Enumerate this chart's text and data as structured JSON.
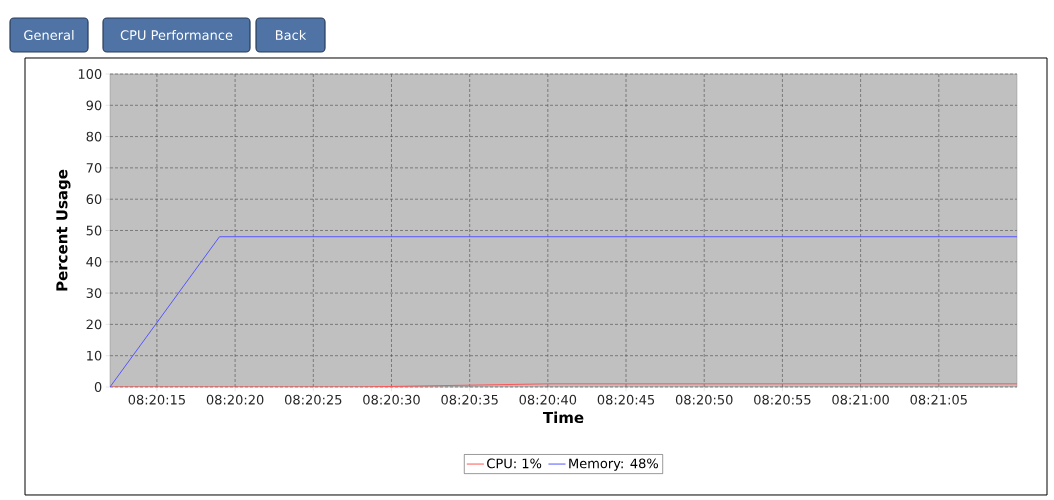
{
  "chart_data": {
    "type": "line",
    "xlabel": "Time",
    "ylabel": "Percent Usage",
    "annotations": [
      "General",
      "CPU Performance",
      "Back"
    ],
    "xlim": [
      8.336667,
      8.352778
    ],
    "ylim": [
      0,
      100
    ],
    "xticks": [
      {
        "value": 8.3375,
        "label": "08:20:15"
      },
      {
        "value": 8.338889,
        "label": "08:20:20"
      },
      {
        "value": 8.340278,
        "label": "08:20:25"
      },
      {
        "value": 8.341667,
        "label": "08:20:30"
      },
      {
        "value": 8.343056,
        "label": "08:20:35"
      },
      {
        "value": 8.344444,
        "label": "08:20:40"
      },
      {
        "value": 8.345833,
        "label": "08:20:45"
      },
      {
        "value": 8.347222,
        "label": "08:20:50"
      },
      {
        "value": 8.348611,
        "label": "08:20:55"
      },
      {
        "value": 8.35,
        "label": "08:21:00"
      },
      {
        "value": 8.351389,
        "label": "08:21:05"
      }
    ],
    "yticks": [
      0,
      10,
      20,
      30,
      40,
      50,
      60,
      70,
      80,
      90,
      100
    ],
    "series": [
      {
        "name": "CPU: 1%",
        "color": "#ff5555",
        "x": [
          8.336667,
          8.341111,
          8.344444,
          8.352778
        ],
        "values": [
          0,
          0,
          1,
          1
        ]
      },
      {
        "name": "Memory: 48%",
        "color": "#5555ff",
        "x": [
          8.336667,
          8.338611,
          8.352778
        ],
        "values": [
          0,
          48,
          48
        ]
      }
    ],
    "grid": true,
    "legend": "bottom",
    "marker": "none",
    "line_style": "solid"
  }
}
